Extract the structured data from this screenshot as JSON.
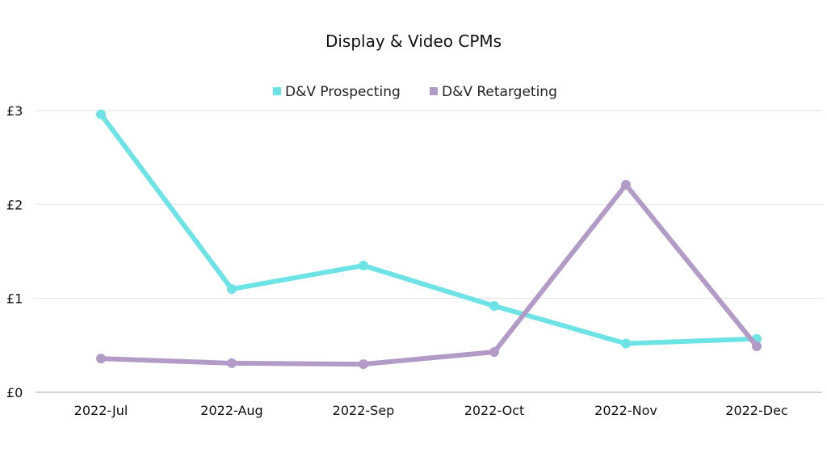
{
  "chart_data": {
    "type": "line",
    "title": "Display & Video CPMs",
    "xlabel": "",
    "ylabel": "",
    "categories": [
      "2022-Jul",
      "2022-Aug",
      "2022-Sep",
      "2022-Oct",
      "2022-Nov",
      "2022-Dec"
    ],
    "y_ticks": [
      "£0",
      "£1",
      "£2",
      "£3"
    ],
    "ylim": [
      0,
      3
    ],
    "grid": true,
    "legend_position": "top-center",
    "series": [
      {
        "name": "D&V Prospecting",
        "color": "#6ee3e5",
        "values": [
          2.96,
          1.1,
          1.35,
          0.92,
          0.52,
          0.57
        ]
      },
      {
        "name": "D&V Retargeting",
        "color": "#b39bc8",
        "values": [
          0.36,
          0.31,
          0.3,
          0.43,
          2.21,
          0.49
        ]
      }
    ]
  }
}
